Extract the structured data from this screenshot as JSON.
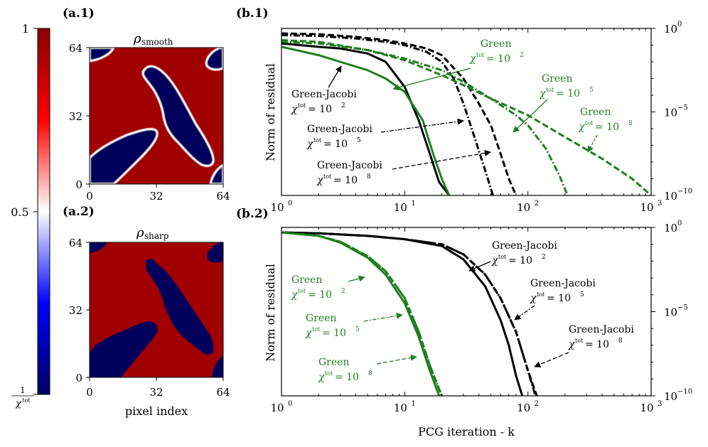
{
  "panels": {
    "a1": {
      "label": "(a.1)",
      "title": "ρ",
      "title_sub": "smooth"
    },
    "a2": {
      "label": "(a.2)",
      "title": "ρ",
      "title_sub": "sharp"
    },
    "b1": {
      "label": "(b.1)"
    },
    "b2": {
      "label": "(b.2)"
    }
  },
  "colorbar": {
    "top_label": "1",
    "mid_label": "0.5",
    "bottom_label_num": "1",
    "bottom_label_den": "χ",
    "bottom_label_den_sup": "tot",
    "colors": [
      "#000060",
      "#0000ff",
      "#ffffff",
      "#ff0000",
      "#8b0000"
    ]
  },
  "maps": {
    "ticks": [
      "0",
      "32",
      "64"
    ],
    "xlabel": "pixel index",
    "colors": {
      "red": "#a00000",
      "blue": "#00005c",
      "white": "#ffffff"
    }
  },
  "chart_data": [
    {
      "id": "b1",
      "type": "line",
      "xscale": "log",
      "yscale": "log",
      "xlim": [
        1,
        1000
      ],
      "ylim": [
        1e-10,
        1
      ],
      "xticks": [
        "10",
        "10",
        "10",
        "10"
      ],
      "xtick_exps": [
        "0",
        "1",
        "2",
        "3"
      ],
      "yticks": [
        "10",
        "10",
        "10"
      ],
      "ytick_exps": [
        "0",
        "−5",
        "−10"
      ],
      "ylabel": "Norm of residual",
      "series": [
        {
          "name": "Green-Jacobi χ^tot = 10^2",
          "color": "#000000",
          "dash": "solid",
          "x": [
            1,
            2,
            3,
            5,
            7,
            10,
            13,
            16,
            19,
            23
          ],
          "logy": [
            -0.9,
            -1.1,
            -1.2,
            -1.5,
            -2.0,
            -3.5,
            -5.5,
            -7.5,
            -9.2,
            -10
          ]
        },
        {
          "name": "Green-Jacobi χ^tot = 10^5",
          "color": "#000000",
          "dash": "dashdot",
          "x": [
            1,
            2,
            4,
            7,
            10,
            15,
            20,
            25,
            30,
            35,
            45,
            52
          ],
          "logy": [
            -0.4,
            -0.45,
            -0.6,
            -0.8,
            -1.0,
            -1.4,
            -2.0,
            -3.0,
            -4.5,
            -6.0,
            -8.5,
            -10
          ]
        },
        {
          "name": "Green-Jacobi χ^tot = 10^8",
          "color": "#000000",
          "dash": "dashed",
          "x": [
            1,
            2,
            4,
            7,
            10,
            15,
            20,
            30,
            40,
            50,
            60,
            70,
            80
          ],
          "logy": [
            -0.3,
            -0.35,
            -0.5,
            -0.7,
            -0.9,
            -1.2,
            -1.6,
            -3.0,
            -4.5,
            -5.8,
            -7.5,
            -9.0,
            -10
          ]
        },
        {
          "name": "Green χ^tot = 10^2",
          "color": "#1f7f1f",
          "dash": "solid",
          "x": [
            1,
            2,
            3,
            5,
            7,
            10,
            14,
            17,
            20,
            23
          ],
          "logy": [
            -1.1,
            -1.6,
            -2.0,
            -2.5,
            -3.0,
            -3.8,
            -5.5,
            -7.5,
            -9.0,
            -10
          ]
        },
        {
          "name": "Green χ^tot = 10^5",
          "color": "#1f7f1f",
          "dash": "dashdot",
          "x": [
            1,
            2,
            5,
            10,
            20,
            30,
            50,
            80,
            100,
            140,
            180,
            210
          ],
          "logy": [
            -0.8,
            -0.9,
            -1.3,
            -1.8,
            -2.5,
            -3.2,
            -4.2,
            -5.2,
            -5.8,
            -7.2,
            -8.8,
            -10
          ]
        },
        {
          "name": "Green χ^tot = 10^8",
          "color": "#1f7f1f",
          "dash": "dashed",
          "x": [
            1,
            2,
            5,
            10,
            20,
            30,
            50,
            100,
            200,
            400,
            700,
            1000
          ],
          "logy": [
            -0.7,
            -0.8,
            -1.3,
            -1.9,
            -2.8,
            -3.4,
            -4.2,
            -5.2,
            -6.5,
            -7.8,
            -9.0,
            -10
          ]
        }
      ],
      "annotations": [
        {
          "line1": "Green",
          "line2": "χ",
          "sup": "tot",
          "eq": " = 10",
          "exp": "2",
          "color": "#1f7f1f"
        },
        {
          "line1": "Green",
          "line2": "χ",
          "sup": "tot",
          "eq": " = 10",
          "exp": "5",
          "color": "#1f7f1f"
        },
        {
          "line1": "Green",
          "line2": "χ",
          "sup": "tot",
          "eq": " = 10",
          "exp": "8",
          "color": "#1f7f1f"
        },
        {
          "line1": "Green-Jacobi",
          "line2": "χ",
          "sup": "tot",
          "eq": " = 10",
          "exp": "2",
          "color": "#000000"
        },
        {
          "line1": "Green-Jacobi",
          "line2": "χ",
          "sup": "tot",
          "eq": " = 10",
          "exp": "5",
          "color": "#000000"
        },
        {
          "line1": "Green-Jacobi",
          "line2": "χ",
          "sup": "tot",
          "eq": " = 10",
          "exp": "8",
          "color": "#000000"
        }
      ]
    },
    {
      "id": "b2",
      "type": "line",
      "xscale": "log",
      "yscale": "log",
      "xlim": [
        1,
        1000
      ],
      "ylim": [
        1e-10,
        1
      ],
      "xticks": [
        "10",
        "10",
        "10",
        "10"
      ],
      "xtick_exps": [
        "0",
        "1",
        "2",
        "3"
      ],
      "yticks": [
        "10",
        "10",
        "10"
      ],
      "ytick_exps": [
        "0",
        "−5",
        "−10"
      ],
      "xlabel": "PCG iteration - k",
      "ylabel": "Norm of residual",
      "series": [
        {
          "name": "Green-Jacobi χ^tot = 10^2",
          "color": "#000000",
          "dash": "solid",
          "x": [
            1,
            2,
            5,
            10,
            20,
            30,
            45,
            60,
            70,
            80,
            90
          ],
          "logy": [
            -0.3,
            -0.35,
            -0.5,
            -0.7,
            -1.1,
            -1.9,
            -3.5,
            -5.5,
            -7.0,
            -8.8,
            -10
          ]
        },
        {
          "name": "Green-Jacobi χ^tot = 10^5",
          "color": "#000000",
          "dash": "dashdot",
          "x": [
            1,
            2,
            5,
            10,
            20,
            30,
            45,
            60,
            80,
            100,
            115
          ],
          "logy": [
            -0.3,
            -0.35,
            -0.5,
            -0.7,
            -1.0,
            -1.6,
            -2.8,
            -4.2,
            -6.2,
            -8.5,
            -10
          ]
        },
        {
          "name": "Green-Jacobi χ^tot = 10^8",
          "color": "#000000",
          "dash": "dashed",
          "x": [
            1,
            2,
            5,
            10,
            20,
            30,
            45,
            60,
            80,
            100,
            118
          ],
          "logy": [
            -0.3,
            -0.35,
            -0.5,
            -0.7,
            -1.0,
            -1.6,
            -2.8,
            -4.2,
            -6.2,
            -8.5,
            -10
          ]
        },
        {
          "name": "Green χ^tot = 10^2",
          "color": "#1f7f1f",
          "dash": "solid",
          "x": [
            1,
            2,
            3,
            5,
            7,
            10,
            13,
            16,
            19
          ],
          "logy": [
            -0.3,
            -0.5,
            -0.9,
            -1.8,
            -2.8,
            -4.5,
            -6.5,
            -8.5,
            -10
          ]
        },
        {
          "name": "Green χ^tot = 10^5",
          "color": "#1f7f1f",
          "dash": "dashdot",
          "x": [
            1,
            2,
            3,
            5,
            7,
            10,
            13,
            16,
            20
          ],
          "logy": [
            -0.3,
            -0.5,
            -0.85,
            -1.7,
            -2.6,
            -4.2,
            -6.2,
            -8.2,
            -10
          ]
        },
        {
          "name": "Green χ^tot = 10^8",
          "color": "#1f7f1f",
          "dash": "dashed",
          "x": [
            1,
            2,
            3,
            5,
            7,
            10,
            13,
            16,
            20
          ],
          "logy": [
            -0.3,
            -0.5,
            -0.85,
            -1.7,
            -2.6,
            -4.2,
            -6.2,
            -8.2,
            -10
          ]
        }
      ],
      "annotations": [
        {
          "line1": "Green",
          "line2": "χ",
          "sup": "tot",
          "eq": " = 10",
          "exp": "2",
          "color": "#1f7f1f"
        },
        {
          "line1": "Green",
          "line2": "χ",
          "sup": "tot",
          "eq": " = 10",
          "exp": "5",
          "color": "#1f7f1f"
        },
        {
          "line1": "Green",
          "line2": "χ",
          "sup": "tot",
          "eq": " = 10",
          "exp": "8",
          "color": "#1f7f1f"
        },
        {
          "line1": "Green-Jacobi",
          "line2": "χ",
          "sup": "tot",
          "eq": " = 10",
          "exp": "2",
          "color": "#000000"
        },
        {
          "line1": "Green-Jacobi",
          "line2": "χ",
          "sup": "tot",
          "eq": " = 10",
          "exp": "5",
          "color": "#000000"
        },
        {
          "line1": "Green-Jacobi",
          "line2": "χ",
          "sup": "tot",
          "eq": " = 10",
          "exp": "8",
          "color": "#000000"
        }
      ]
    }
  ]
}
